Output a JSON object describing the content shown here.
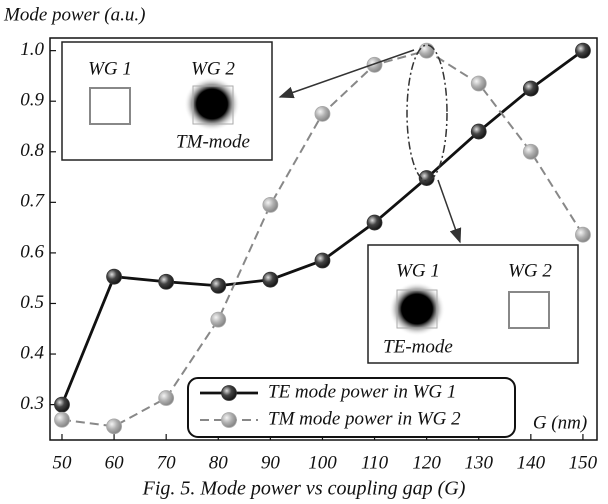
{
  "chart_data": {
    "type": "line",
    "y_label": "Mode power (a.u.)",
    "x_label": "G (nm)",
    "caption": "Fig. 5. Mode power vs coupling gap (G)",
    "x": [
      50,
      60,
      70,
      80,
      90,
      100,
      110,
      120,
      130,
      140,
      150
    ],
    "series": [
      {
        "name": "TE mode power in WG 1",
        "color": "#111111",
        "marker_color": "#333333",
        "dashed": false,
        "values": [
          0.3,
          0.553,
          0.543,
          0.535,
          0.547,
          0.585,
          0.66,
          0.748,
          0.84,
          0.925,
          1.0
        ]
      },
      {
        "name": "TM mode power in WG 2",
        "color": "#888888",
        "marker_color": "#a8a8a8",
        "dashed": true,
        "values": [
          0.27,
          0.257,
          0.313,
          0.468,
          0.695,
          0.875,
          0.972,
          1.0,
          0.935,
          0.8,
          0.636
        ]
      }
    ],
    "xlim": [
      47.7,
      152.7
    ],
    "ylim": [
      0.23,
      1.025
    ],
    "xticks": [
      50,
      60,
      70,
      80,
      90,
      100,
      110,
      120,
      130,
      140,
      150
    ],
    "yticks": [
      {
        "value": 0.3,
        "label": "0.3"
      },
      {
        "value": 0.4,
        "label": "0.4"
      },
      {
        "value": 0.5,
        "label": "0.5"
      },
      {
        "value": 0.6,
        "label": "0.6"
      },
      {
        "value": 0.7,
        "label": "0.7"
      },
      {
        "value": 0.8,
        "label": "0.8"
      },
      {
        "value": 0.9,
        "label": "0.9"
      },
      {
        "value": 1.0,
        "label": "1.0"
      }
    ],
    "insets": [
      {
        "wg1": "WG 1",
        "wg2": "WG 2",
        "mode": "TM-mode"
      },
      {
        "wg1": "WG 1",
        "wg2": "WG 2",
        "mode": "TE-mode"
      }
    ]
  }
}
